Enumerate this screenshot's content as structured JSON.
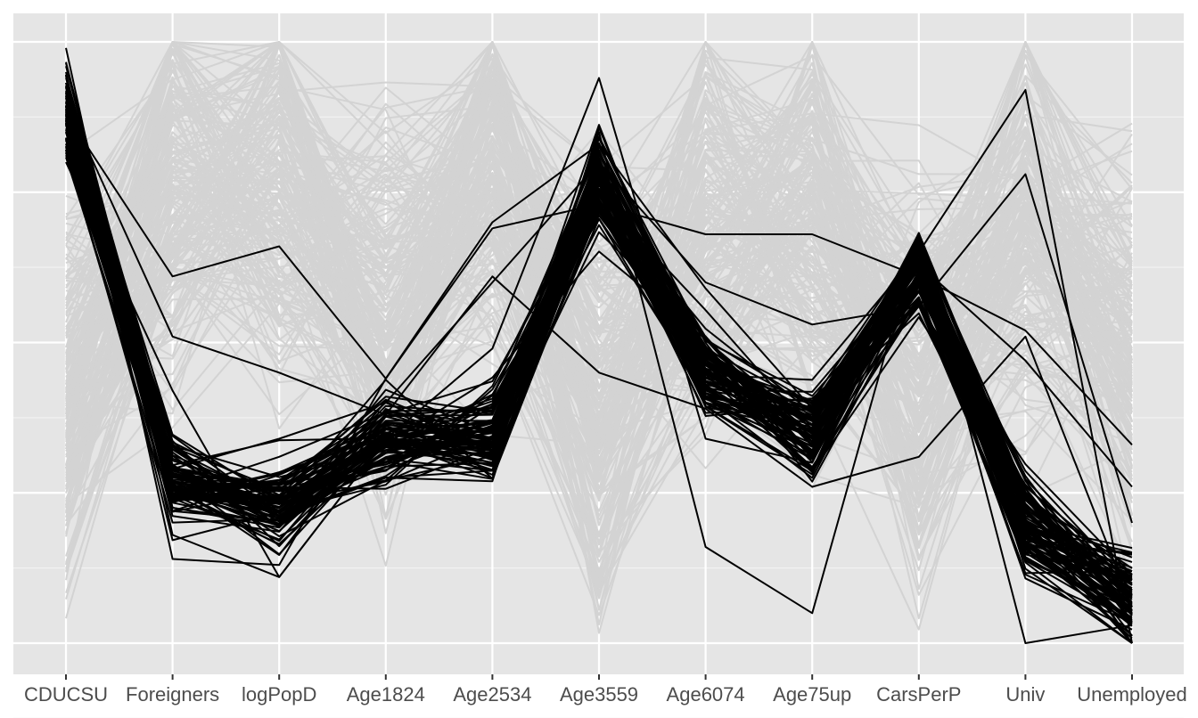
{
  "chart_data": {
    "type": "parallel_coordinates",
    "axes": [
      "CDUCSU",
      "Foreigners",
      "logPopD",
      "Age1824",
      "Age2534",
      "Age3559",
      "Age6074",
      "Age75up",
      "CarsPerP",
      "Univ",
      "Unemployed"
    ],
    "y_scale": "each axis rescaled to [0, 1]",
    "ylim": [
      0,
      1
    ],
    "y_gridlines": [
      0,
      0.25,
      0.5,
      0.75,
      1
    ],
    "y_tick_labels": [],
    "grid": true,
    "legend": "none",
    "colors": {
      "panel_background": "#e5e5e5",
      "grid_major": "#ffffff",
      "background_lines": "#d3d3d3",
      "highlighted_lines": "#000000",
      "axis_text": "#4d4d4d"
    },
    "groups": [
      {
        "name": "",
        "color": "#d3d3d3",
        "typical_profile": [
          0.4,
          0.75,
          0.78,
          0.55,
          0.8,
          0.38,
          0.68,
          0.7,
          0.45,
          0.68,
          0.5
        ],
        "spread": 0.17,
        "line_count": 200
      },
      {
        "name": "",
        "color": "#000000",
        "typical_profile": [
          0.88,
          0.27,
          0.23,
          0.34,
          0.35,
          0.77,
          0.45,
          0.35,
          0.62,
          0.2,
          0.07
        ],
        "spread": 0.04,
        "line_count": 90
      }
    ],
    "sample_series": [
      {
        "group": "highlighted",
        "values": [
          0.99,
          0.18,
          0.11,
          0.34,
          0.3,
          0.85,
          0.16,
          0.05,
          0.68,
          0.0,
          0.03
        ]
      },
      {
        "group": "highlighted",
        "values": [
          0.88,
          0.61,
          0.66,
          0.44,
          0.69,
          0.73,
          0.68,
          0.68,
          0.61,
          0.52,
          0.33
        ]
      },
      {
        "group": "highlighted",
        "values": [
          0.9,
          0.51,
          0.45,
          0.38,
          0.61,
          0.45,
          0.39,
          0.26,
          0.31,
          0.51,
          0.06
        ]
      },
      {
        "group": "highlighted",
        "values": [
          0.8,
          0.42,
          0.11,
          0.34,
          0.49,
          0.94,
          0.34,
          0.3,
          0.65,
          0.92,
          0.0
        ]
      },
      {
        "group": "highlighted",
        "values": [
          0.87,
          0.29,
          0.34,
          0.4,
          0.6,
          0.8,
          0.6,
          0.53,
          0.56,
          0.78,
          0.2
        ]
      },
      {
        "group": "highlighted",
        "values": [
          0.95,
          0.14,
          0.13,
          0.44,
          0.7,
          0.83,
          0.59,
          0.39,
          0.63,
          0.47,
          0.26
        ]
      }
    ]
  }
}
